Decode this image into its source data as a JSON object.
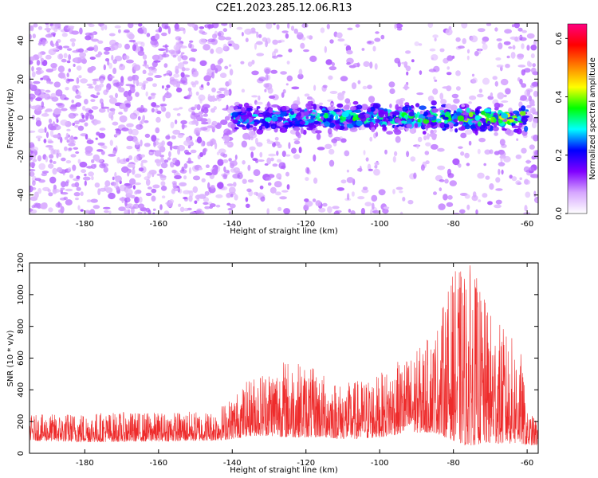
{
  "figure": {
    "title": "C2E1.2023.285.12.06.R13"
  },
  "chart_data": [
    {
      "type": "heatmap",
      "title": "",
      "xlabel": "Height of straight line (km)",
      "ylabel": "Frequency (Hz)",
      "xlim": [
        -195,
        -57
      ],
      "ylim": [
        -50,
        49
      ],
      "x_ticks": [
        -180,
        -160,
        -140,
        -120,
        -100,
        -80,
        -60
      ],
      "y_ticks": [
        -40,
        -20,
        0,
        20,
        40
      ],
      "colorbar": {
        "label": "Normalized spectral amplitude",
        "range": [
          0.0,
          0.65
        ],
        "ticks": [
          0.0,
          0.2,
          0.4,
          0.6
        ],
        "colors": [
          "#ffffff",
          "#d6a6ff",
          "#8000ff",
          "#0000ff",
          "#00ffff",
          "#00ff00",
          "#ffff00",
          "#ff8000",
          "#ff0000",
          "#ff0080"
        ]
      },
      "band": {
        "description_center_hz": 0,
        "x_start": -140,
        "x_end": -60,
        "half_width_hz": 6,
        "peak_amplitude": 0.5
      },
      "background_amplitude": 0.12
    },
    {
      "type": "line",
      "title": "",
      "xlabel": "Height of straight line (km)",
      "ylabel": "SNR (10 * v/v)",
      "xlim": [
        -195,
        -57
      ],
      "ylim": [
        0,
        1200
      ],
      "x_ticks": [
        -180,
        -160,
        -140,
        -120,
        -100,
        -80,
        -60
      ],
      "y_ticks": [
        0,
        200,
        400,
        600,
        800,
        1000,
        1200
      ],
      "series": [
        {
          "color": "#ee2b2b",
          "envelope": {
            "x": [
              -195,
              -180,
              -160,
              -145,
              -140,
              -135,
              -130,
              -125,
              -120,
              -115,
              -110,
              -105,
              -100,
              -95,
              -90,
              -85,
              -80,
              -77,
              -75,
              -72,
              -70,
              -65,
              -62,
              -60,
              -57
            ],
            "low": [
              80,
              70,
              75,
              80,
              90,
              110,
              110,
              100,
              100,
              100,
              90,
              90,
              100,
              120,
              130,
              130,
              80,
              50,
              50,
              60,
              60,
              60,
              60,
              50,
              50
            ],
            "high": [
              240,
              260,
              260,
              270,
              360,
              480,
              560,
              600,
              560,
              500,
              440,
              470,
              500,
              580,
              650,
              780,
              1150,
              1180,
              1200,
              1000,
              900,
              750,
              700,
              260,
              220
            ]
          }
        }
      ]
    }
  ]
}
